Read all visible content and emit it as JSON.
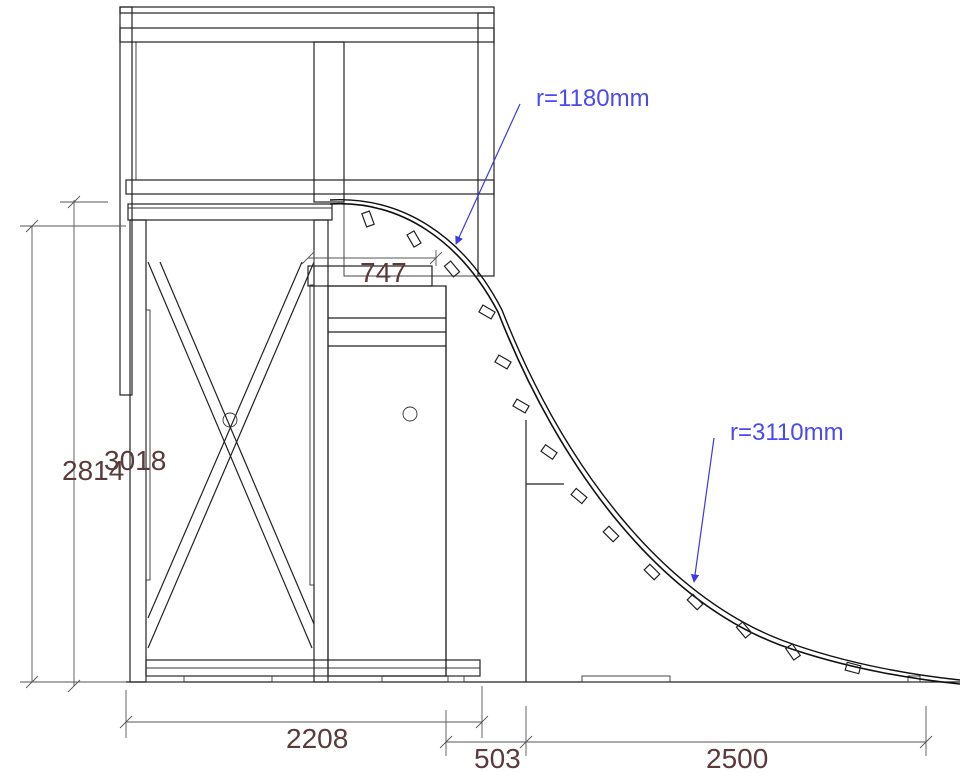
{
  "dimensions": {
    "height_total": "2814",
    "height_inner": "3018",
    "deck_overlap": "747",
    "base_width": "2208",
    "step_offset": "503",
    "ramp_length": "2500"
  },
  "annotations": {
    "radius_top": "r=1180mm",
    "radius_bottom": "r=3110mm"
  },
  "colors": {
    "line": "#222222",
    "dimension_text": "#5a3a3a",
    "annotation": "#4a4af0",
    "screen_fill": "#e6f0d4"
  }
}
